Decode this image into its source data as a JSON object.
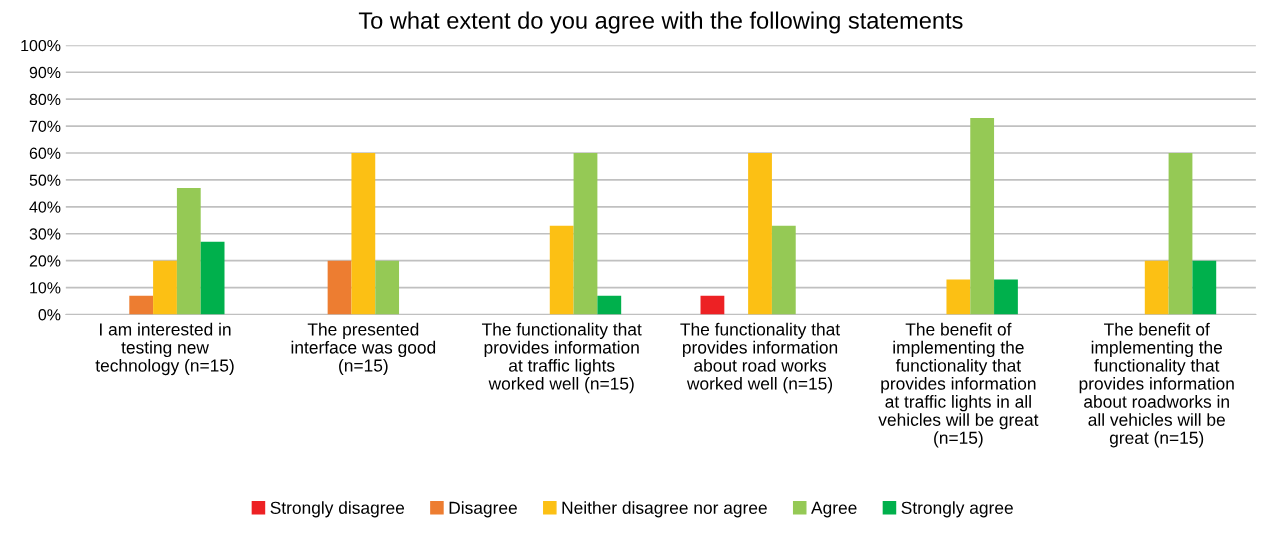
{
  "chart_data": {
    "type": "bar",
    "title": "To what extent do you agree with the following statements",
    "categories": [
      "I am interested in\ntesting new\ntechnology (n=15)",
      "The presented\ninterface was good\n(n=15)",
      "The functionality that\nprovides information\nat traffic lights\nworked well (n=15)",
      "The functionality that\nprovides information\nabout road works\nworked well (n=15)",
      "The benefit of\nimplementing the\nfunctionality that\nprovides information\nat traffic lights in all\nvehicles will be great\n(n=15)",
      "The benefit of\nimplementing the\nfunctionality that\nprovides information\nabout roadworks in\nall vehicles will be\ngreat (n=15)"
    ],
    "series": [
      {
        "name": "Strongly disagree",
        "color": "#ed2124",
        "values": [
          0,
          0,
          0,
          7,
          0,
          0
        ]
      },
      {
        "name": "Disagree",
        "color": "#ed7d31",
        "values": [
          7,
          20,
          0,
          0,
          0,
          0
        ]
      },
      {
        "name": "Neither disagree nor agree",
        "color": "#fcc014",
        "values": [
          20,
          60,
          33,
          60,
          13,
          20
        ]
      },
      {
        "name": "Agree",
        "color": "#95c955",
        "values": [
          47,
          20,
          60,
          33,
          73,
          60
        ]
      },
      {
        "name": "Strongly agree",
        "color": "#00b04c",
        "values": [
          27,
          0,
          7,
          0,
          13,
          20
        ]
      }
    ],
    "ylim": [
      0,
      100
    ],
    "yticks": [
      {
        "value": 0,
        "label": "0%"
      },
      {
        "value": 10,
        "label": "10%"
      },
      {
        "value": 20,
        "label": "20%"
      },
      {
        "value": 30,
        "label": "30%"
      },
      {
        "value": 40,
        "label": "40%"
      },
      {
        "value": 50,
        "label": "50%"
      },
      {
        "value": 60,
        "label": "60%"
      },
      {
        "value": 70,
        "label": "70%"
      },
      {
        "value": 80,
        "label": "80%"
      },
      {
        "value": 90,
        "label": "90%"
      },
      {
        "value": 100,
        "label": "100%"
      }
    ],
    "grid": "y",
    "legend": "bottom"
  }
}
